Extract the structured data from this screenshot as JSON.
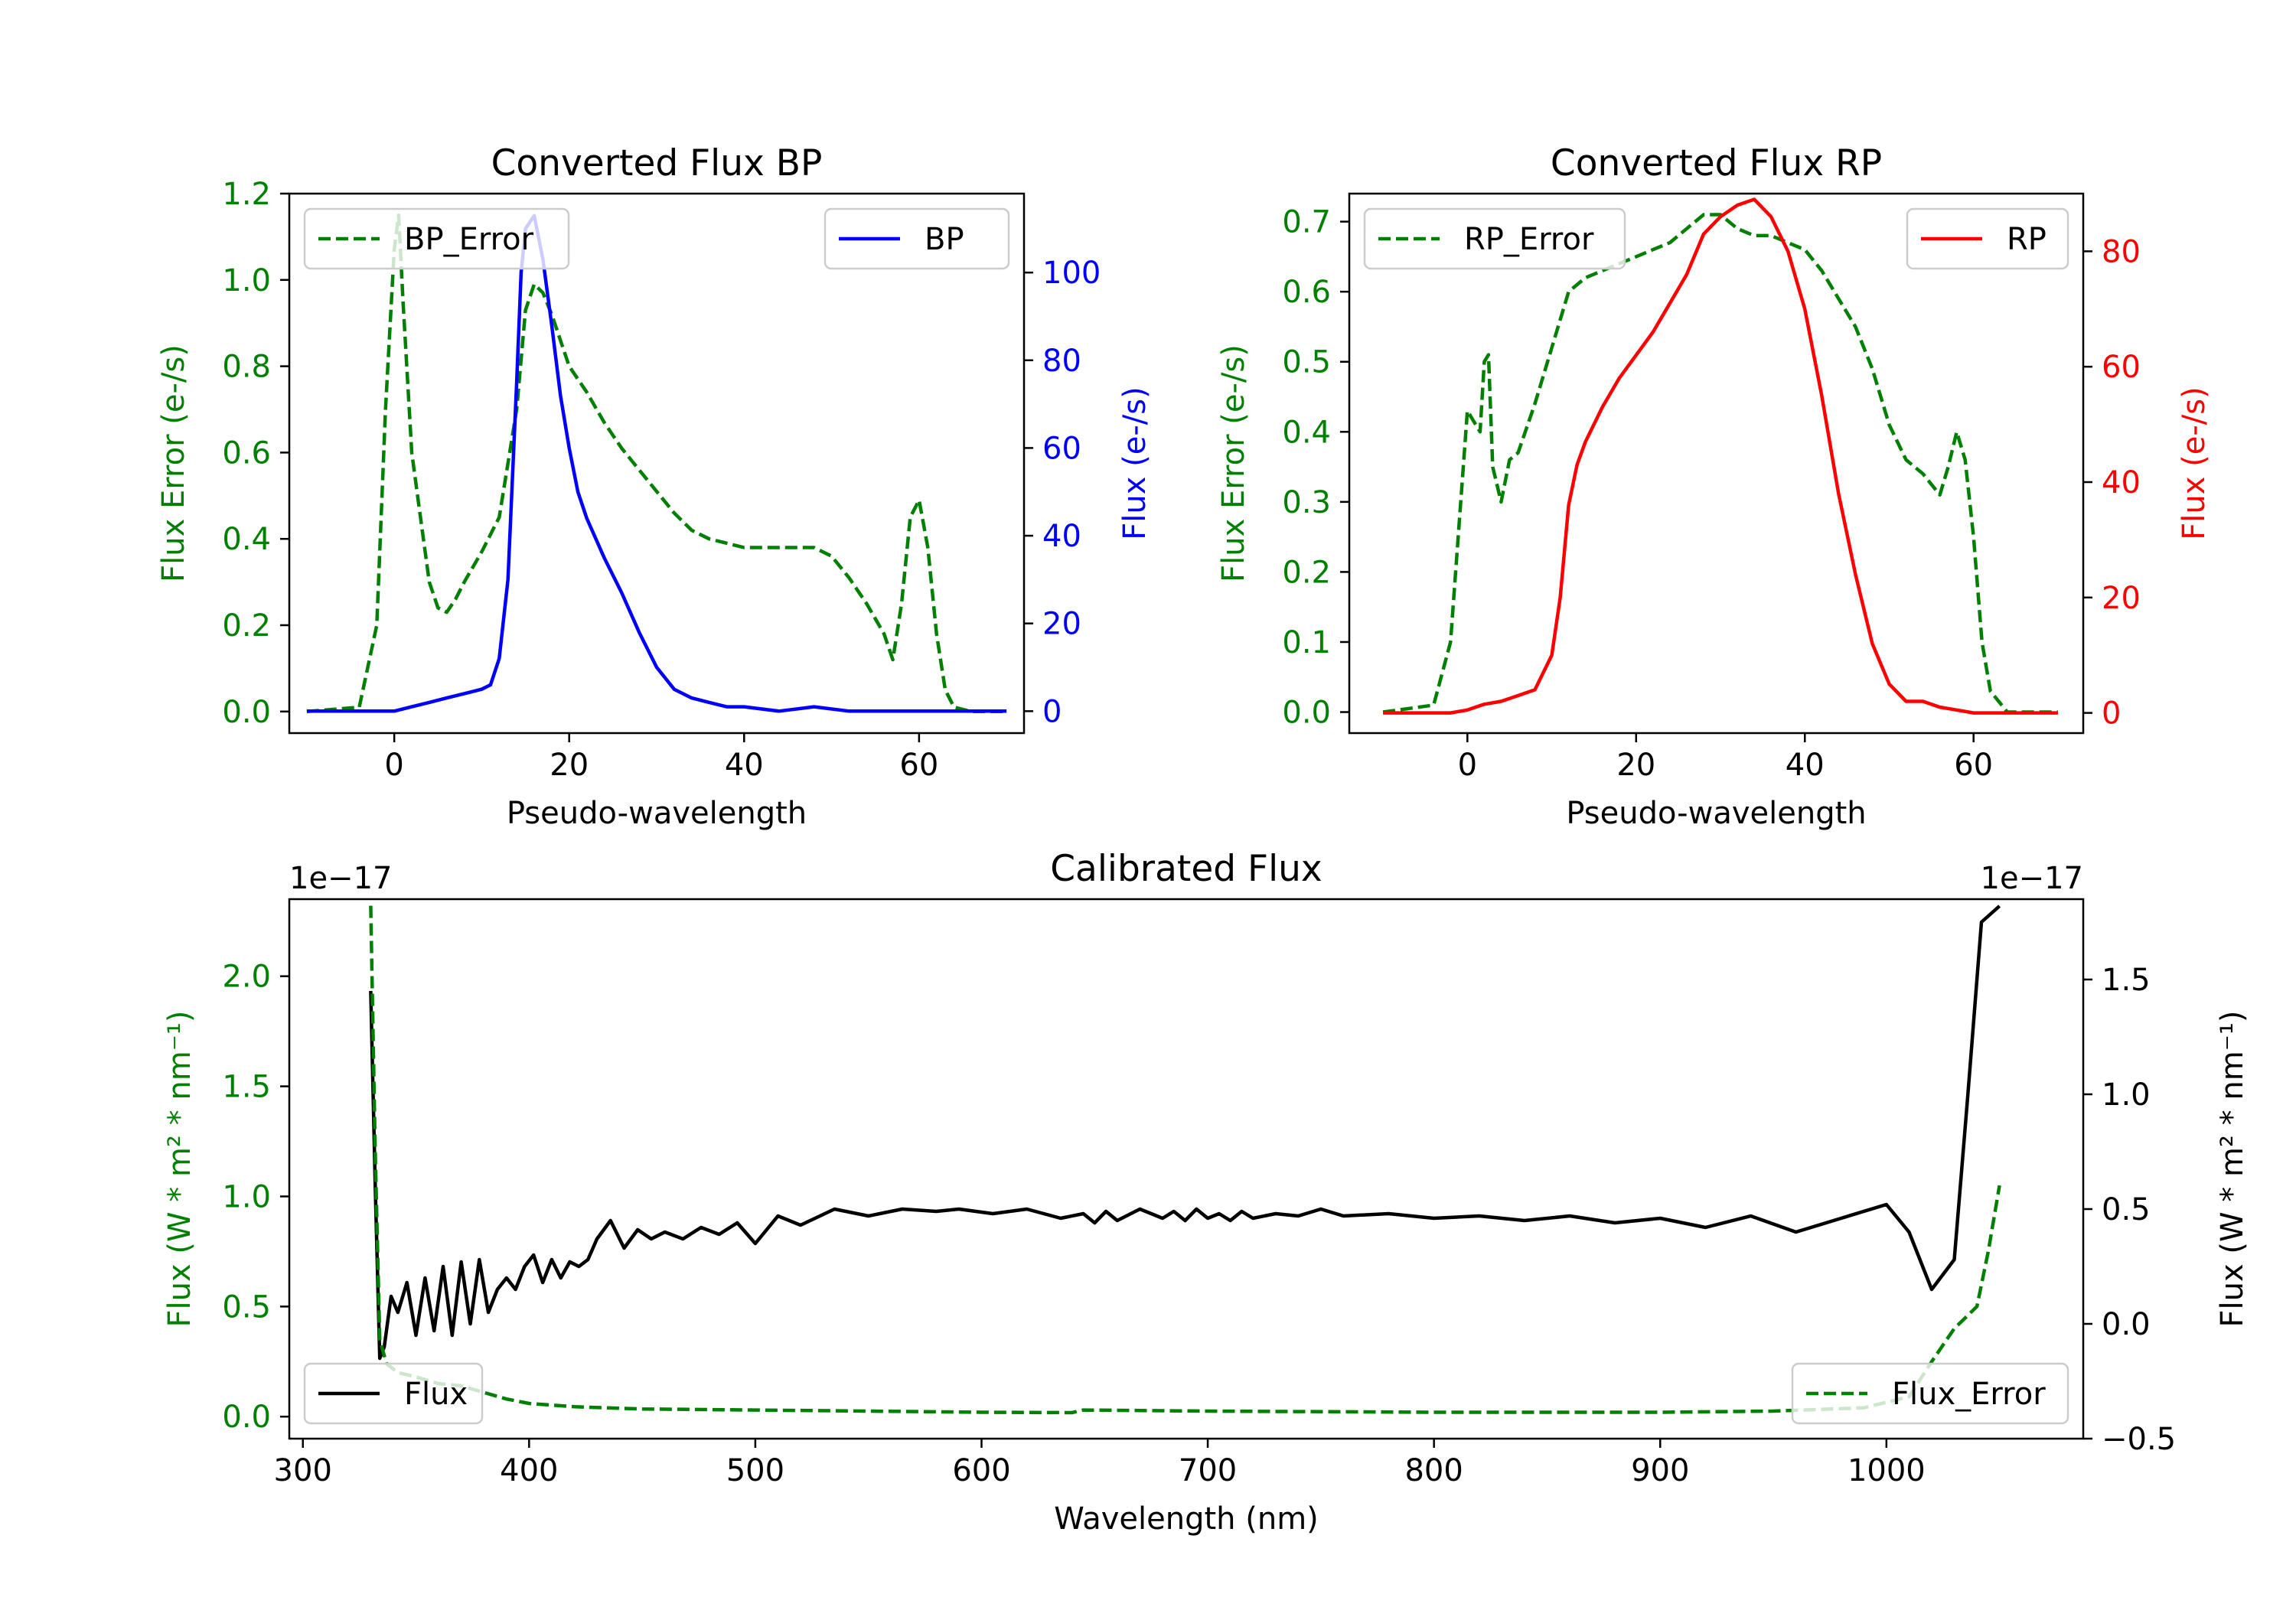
{
  "colors": {
    "green": "#008000",
    "blue": "#0000ff",
    "red": "#ff0000",
    "black": "#000000"
  },
  "chart_data": [
    {
      "id": "bp",
      "type": "line",
      "title": "Converted Flux BP",
      "xlabel": "Pseudo-wavelength",
      "ylabel_left": "Flux Error (e-/s)",
      "ylabel_right": "Flux (e-/s)",
      "xlim": [
        -12,
        72
      ],
      "ylim_left": [
        -0.05,
        1.2
      ],
      "ylim_right": [
        -5,
        118
      ],
      "xticks": [
        "0",
        "20",
        "40",
        "60"
      ],
      "xtick_values": [
        0,
        20,
        40,
        60
      ],
      "yticks_left": [
        "0.0",
        "0.2",
        "0.4",
        "0.6",
        "0.8",
        "1.0",
        "1.2"
      ],
      "ytick_values_left": [
        0,
        0.2,
        0.4,
        0.6,
        0.8,
        1.0,
        1.2
      ],
      "yticks_right": [
        "0",
        "20",
        "40",
        "60",
        "80",
        "100"
      ],
      "ytick_values_right": [
        0,
        20,
        40,
        60,
        80,
        100
      ],
      "legend_left": {
        "label": "BP_Error",
        "position": "upper left"
      },
      "legend_right": {
        "label": "BP",
        "position": "upper right"
      },
      "series": [
        {
          "name": "BP_Error",
          "axis": "left",
          "color": "#008000",
          "style": "dashed",
          "x": [
            -10,
            -4,
            -2,
            -1,
            0,
            0.5,
            1,
            2,
            3,
            4,
            5,
            6,
            7,
            8,
            10,
            12,
            14,
            15,
            16,
            17,
            18,
            20,
            22,
            24,
            26,
            28,
            30,
            32,
            34,
            36,
            38,
            40,
            44,
            48,
            50,
            52,
            54,
            56,
            57,
            58,
            59,
            60,
            61,
            62,
            63,
            64,
            66,
            70
          ],
          "values": [
            0,
            0.01,
            0.2,
            0.7,
            1.07,
            1.15,
            0.95,
            0.6,
            0.45,
            0.3,
            0.24,
            0.23,
            0.26,
            0.3,
            0.37,
            0.45,
            0.7,
            0.93,
            0.99,
            0.97,
            0.92,
            0.8,
            0.74,
            0.67,
            0.61,
            0.56,
            0.51,
            0.46,
            0.42,
            0.4,
            0.39,
            0.38,
            0.38,
            0.38,
            0.36,
            0.31,
            0.25,
            0.18,
            0.12,
            0.25,
            0.45,
            0.49,
            0.38,
            0.18,
            0.05,
            0.01,
            0,
            0
          ]
        },
        {
          "name": "BP",
          "axis": "right",
          "color": "#0000ff",
          "style": "solid",
          "x": [
            -10,
            -2,
            0,
            2,
            4,
            6,
            8,
            10,
            11,
            12,
            13,
            14,
            14.5,
            15,
            16,
            17,
            18,
            19,
            20,
            21,
            22,
            24,
            26,
            28,
            30,
            32,
            34,
            36,
            38,
            40,
            44,
            48,
            52,
            56,
            60,
            64,
            70
          ],
          "values": [
            0,
            0,
            0,
            1,
            2,
            3,
            4,
            5,
            6,
            12,
            30,
            75,
            100,
            110,
            113,
            103,
            88,
            72,
            60,
            50,
            44,
            35,
            27,
            18,
            10,
            5,
            3,
            2,
            1,
            1,
            0,
            1,
            0,
            0,
            0,
            0,
            0
          ]
        }
      ]
    },
    {
      "id": "rp",
      "type": "line",
      "title": "Converted Flux RP",
      "xlabel": "Pseudo-wavelength",
      "ylabel_left": "Flux Error (e-/s)",
      "ylabel_right": "Flux (e-/s)",
      "xlim": [
        -14,
        73
      ],
      "ylim_left": [
        -0.03,
        0.74
      ],
      "ylim_right": [
        -3.5,
        90
      ],
      "xticks": [
        "0",
        "20",
        "40",
        "60"
      ],
      "xtick_values": [
        0,
        20,
        40,
        60
      ],
      "yticks_left": [
        "0.0",
        "0.1",
        "0.2",
        "0.3",
        "0.4",
        "0.5",
        "0.6",
        "0.7"
      ],
      "ytick_values_left": [
        0,
        0.1,
        0.2,
        0.3,
        0.4,
        0.5,
        0.6,
        0.7
      ],
      "yticks_right": [
        "0",
        "20",
        "40",
        "60",
        "80"
      ],
      "ytick_values_right": [
        0,
        20,
        40,
        60,
        80
      ],
      "legend_left": {
        "label": "RP_Error",
        "position": "upper left"
      },
      "legend_right": {
        "label": "RP",
        "position": "upper right"
      },
      "series": [
        {
          "name": "RP_Error",
          "axis": "left",
          "color": "#008000",
          "style": "dashed",
          "x": [
            -10,
            -4,
            -2,
            0,
            1,
            1.5,
            2,
            2.5,
            3,
            4,
            5,
            6,
            8,
            10,
            12,
            14,
            16,
            18,
            20,
            22,
            24,
            26,
            28,
            30,
            32,
            34,
            36,
            38,
            40,
            42,
            44,
            46,
            48,
            50,
            52,
            54,
            56,
            57,
            58,
            59,
            60,
            61,
            62,
            64,
            70
          ],
          "values": [
            0,
            0.01,
            0.1,
            0.43,
            0.41,
            0.4,
            0.5,
            0.51,
            0.35,
            0.3,
            0.36,
            0.37,
            0.44,
            0.52,
            0.6,
            0.62,
            0.63,
            0.64,
            0.65,
            0.66,
            0.67,
            0.69,
            0.71,
            0.71,
            0.69,
            0.68,
            0.68,
            0.67,
            0.66,
            0.63,
            0.59,
            0.55,
            0.49,
            0.41,
            0.36,
            0.34,
            0.31,
            0.35,
            0.4,
            0.36,
            0.25,
            0.1,
            0.03,
            0,
            0
          ]
        },
        {
          "name": "RP",
          "axis": "right",
          "color": "#ff0000",
          "style": "solid",
          "x": [
            -10,
            -4,
            -2,
            0,
            2,
            4,
            6,
            8,
            10,
            11,
            12,
            13,
            14,
            16,
            18,
            20,
            22,
            24,
            26,
            28,
            30,
            32,
            34,
            36,
            38,
            40,
            42,
            44,
            46,
            48,
            50,
            52,
            54,
            56,
            58,
            60,
            64,
            70
          ],
          "values": [
            0,
            0,
            0,
            0.5,
            1.5,
            2,
            3,
            4,
            10,
            20,
            36,
            43,
            47,
            53,
            58,
            62,
            66,
            71,
            76,
            83,
            86,
            88,
            89,
            86,
            80,
            70,
            55,
            38,
            24,
            12,
            5,
            2,
            2,
            1,
            0.5,
            0,
            0,
            0
          ]
        }
      ]
    },
    {
      "id": "cal",
      "type": "line",
      "title": "Calibrated Flux",
      "xlabel": "Wavelength (nm)",
      "ylabel_left": "Flux (W * m² * nm⁻¹)",
      "ylabel_right": "Flux (W * m² * nm⁻¹)",
      "offset_left": "1e−17",
      "offset_right": "1e−17",
      "xlim": [
        294,
        1087
      ],
      "ylim_left": [
        -0.1,
        2.35
      ],
      "ylim_right": [
        -0.5,
        1.85
      ],
      "xticks": [
        "300",
        "400",
        "500",
        "600",
        "700",
        "800",
        "900",
        "1000"
      ],
      "xtick_values": [
        300,
        400,
        500,
        600,
        700,
        800,
        900,
        1000
      ],
      "yticks_left": [
        "0.0",
        "0.5",
        "1.0",
        "1.5",
        "2.0"
      ],
      "ytick_values_left": [
        0,
        0.5,
        1.0,
        1.5,
        2.0
      ],
      "yticks_right": [
        "−0.5",
        "0.0",
        "0.5",
        "1.0",
        "1.5"
      ],
      "ytick_values_right": [
        -0.5,
        0,
        0.5,
        1.0,
        1.5
      ],
      "legend_left": {
        "label": "Flux",
        "position": "lower left"
      },
      "legend_right": {
        "label": "Flux_Error",
        "position": "lower right"
      },
      "series": [
        {
          "name": "Flux",
          "axis": "right",
          "color": "#000000",
          "style": "solid",
          "x": [
            330,
            332,
            334,
            336,
            339,
            342,
            346,
            350,
            354,
            358,
            362,
            366,
            370,
            374,
            378,
            382,
            386,
            390,
            394,
            398,
            402,
            406,
            410,
            414,
            418,
            422,
            426,
            430,
            436,
            442,
            448,
            454,
            460,
            468,
            476,
            484,
            492,
            500,
            510,
            520,
            535,
            550,
            565,
            580,
            590,
            605,
            620,
            635,
            645,
            650,
            655,
            660,
            670,
            680,
            685,
            690,
            695,
            700,
            705,
            710,
            715,
            720,
            730,
            740,
            750,
            760,
            780,
            800,
            820,
            840,
            860,
            880,
            900,
            920,
            940,
            960,
            980,
            1000,
            1010,
            1020,
            1030,
            1036,
            1042,
            1050
          ],
          "values": [
            1.45,
            0.6,
            -0.15,
            -0.1,
            0.12,
            0.05,
            0.18,
            -0.05,
            0.2,
            -0.03,
            0.25,
            -0.05,
            0.27,
            0.0,
            0.28,
            0.05,
            0.15,
            0.2,
            0.15,
            0.25,
            0.3,
            0.18,
            0.28,
            0.2,
            0.27,
            0.25,
            0.28,
            0.37,
            0.45,
            0.33,
            0.41,
            0.37,
            0.4,
            0.37,
            0.42,
            0.39,
            0.44,
            0.35,
            0.47,
            0.43,
            0.5,
            0.47,
            0.5,
            0.49,
            0.5,
            0.48,
            0.5,
            0.46,
            0.48,
            0.44,
            0.49,
            0.45,
            0.5,
            0.46,
            0.49,
            0.45,
            0.5,
            0.46,
            0.48,
            0.45,
            0.49,
            0.46,
            0.48,
            0.47,
            0.5,
            0.47,
            0.48,
            0.46,
            0.47,
            0.45,
            0.47,
            0.44,
            0.46,
            0.42,
            0.47,
            0.4,
            0.46,
            0.52,
            0.4,
            0.15,
            0.28,
            1.0,
            1.75,
            1.82
          ]
        },
        {
          "name": "Flux_Error",
          "axis": "left",
          "color": "#008000",
          "style": "dashed",
          "x": [
            330,
            332,
            334,
            337,
            342,
            350,
            360,
            370,
            380,
            390,
            400,
            420,
            450,
            500,
            550,
            600,
            640,
            645,
            700,
            800,
            900,
            950,
            990,
            1010,
            1020,
            1030,
            1040,
            1045,
            1050
          ],
          "values": [
            2.32,
            1.2,
            0.35,
            0.24,
            0.2,
            0.18,
            0.15,
            0.14,
            0.11,
            0.08,
            0.06,
            0.045,
            0.035,
            0.03,
            0.025,
            0.02,
            0.018,
            0.03,
            0.025,
            0.02,
            0.02,
            0.025,
            0.04,
            0.09,
            0.25,
            0.4,
            0.5,
            0.75,
            1.05
          ]
        }
      ]
    }
  ]
}
